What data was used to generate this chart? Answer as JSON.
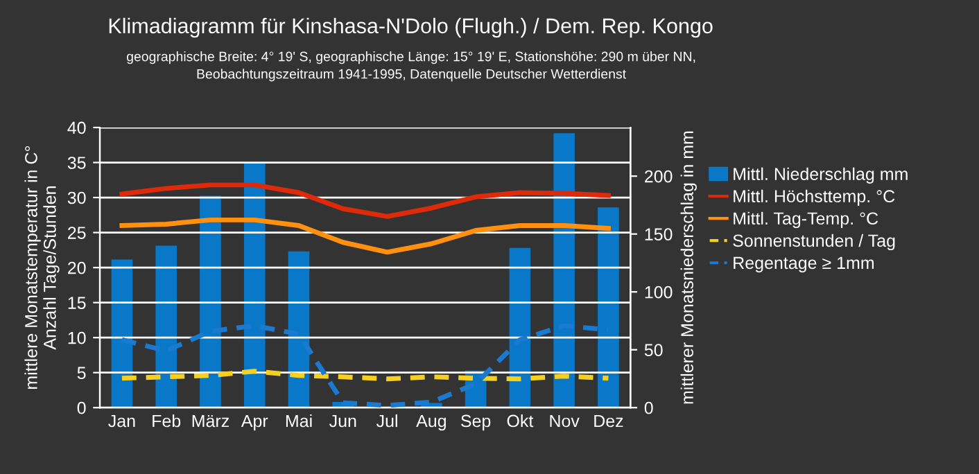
{
  "chart_data": {
    "type": "bar",
    "title": "Klimadiagramm für Kinshasa-N'Dolo (Flugh.) / Dem. Rep. Kongo",
    "subtitle": "geographische Breite: 4° 19' S, geographische Länge: 15° 19' E, Stationshöhe: 290 m über NN,\nBeobachtungszeitraum 1941-1995, Datenquelle Deutscher Wetterdienst",
    "ylabel": "mittlere Monatstemperatur in C°\nAnzahl Tage/Stunden",
    "y2label": "mittlerer Monatsniederschlag in mm",
    "categories": [
      "Jan",
      "Feb",
      "März",
      "Apr",
      "Mai",
      "Jun",
      "Jul",
      "Aug",
      "Sep",
      "Okt",
      "Nov",
      "Dez"
    ],
    "series": [
      {
        "name": "Mittl. Niederschlag mm",
        "axis": "y2",
        "color": "#0a78c8",
        "values": [
          128,
          140,
          183,
          211,
          135,
          5,
          null,
          4,
          32,
          138,
          237,
          173
        ]
      },
      {
        "name": "Mittl. Höchsttemp. °C",
        "type": "line",
        "color": "#dd2a0a",
        "line_style": "solid",
        "values": [
          30.5,
          31.3,
          31.8,
          31.8,
          30.7,
          28.4,
          27.3,
          28.5,
          30.1,
          30.7,
          30.6,
          30.3
        ]
      },
      {
        "name": "Mittl. Tag-Temp. °C",
        "type": "line",
        "color": "#ff9010",
        "line_style": "solid",
        "values": [
          26.0,
          26.2,
          26.8,
          26.8,
          26.0,
          23.6,
          22.2,
          23.4,
          25.3,
          26.0,
          26.0,
          25.6
        ]
      },
      {
        "name": "Sonnenstunden / Tag",
        "type": "line",
        "color": "#f5d020",
        "line_style": "dashed",
        "values": [
          4.2,
          4.4,
          4.6,
          5.2,
          4.6,
          4.4,
          4.1,
          4.4,
          4.2,
          4.1,
          4.5,
          4.2
        ]
      },
      {
        "name": "Regentage ≥ 1mm",
        "type": "line",
        "color": "#1a7ad0",
        "line_style": "dashed",
        "values": [
          9.7,
          8.1,
          10.9,
          11.7,
          10.5,
          0.7,
          0.3,
          0.8,
          3.4,
          9.7,
          11.7,
          11.1
        ]
      }
    ],
    "ylim": [
      0,
      40
    ],
    "yticks": [
      0,
      5,
      10,
      15,
      20,
      25,
      30,
      35,
      40
    ],
    "y2lim": [
      0,
      242
    ],
    "y2ticks": [
      0,
      50,
      100,
      150,
      200
    ],
    "grid": "y",
    "legend": "right"
  }
}
